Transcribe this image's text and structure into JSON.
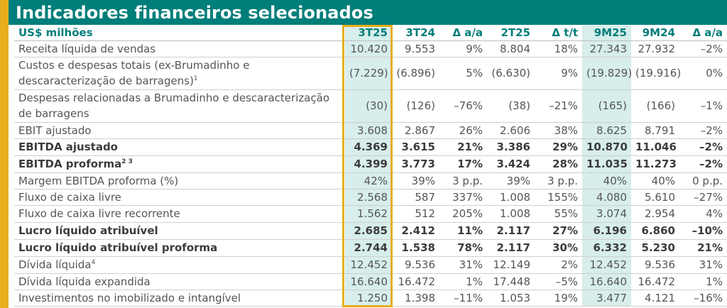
{
  "title": "Indicadores financeiros selecionados",
  "header": {
    "label": "US$ milhões",
    "cols": [
      "3T25",
      "3T24",
      "Δ a/a",
      "2T25",
      "Δ t/t",
      "9M25",
      "9M24",
      "Δ a/a"
    ]
  },
  "rows": [
    {
      "label": "Receita líquida de vendas",
      "bold": false,
      "vals": [
        "10.420",
        "9.553",
        "9%",
        "8.804",
        "18%",
        "27.343",
        "27.932",
        "–2%"
      ]
    },
    {
      "label": "Custos e despesas totais (ex-Brumadinho e descaracterização de barragens)",
      "sup": "1",
      "bold": false,
      "tall": true,
      "vals": [
        "(7.229)",
        "(6.896)",
        "5%",
        "(6.630)",
        "9%",
        "(19.829)",
        "(19.916)",
        "0%"
      ]
    },
    {
      "label": "Despesas relacionadas a Brumadinho e descaracterização de barragens",
      "bold": false,
      "tall": true,
      "vals": [
        "(30)",
        "(126)",
        "–76%",
        "(38)",
        "–21%",
        "(165)",
        "(166)",
        "–1%"
      ]
    },
    {
      "label": "EBIT ajustado",
      "bold": false,
      "vals": [
        "3.608",
        "2.867",
        "26%",
        "2.606",
        "38%",
        "8.625",
        "8.791",
        "–2%"
      ]
    },
    {
      "label": "EBITDA ajustado",
      "bold": true,
      "vals": [
        "4.369",
        "3.615",
        "21%",
        "3.386",
        "29%",
        "10.870",
        "11.046",
        "–2%"
      ]
    },
    {
      "label": "EBITDA proforma",
      "sup": "2 3",
      "bold": true,
      "vals": [
        "4.399",
        "3.773",
        "17%",
        "3.424",
        "28%",
        "11.035",
        "11.273",
        "–2%"
      ]
    },
    {
      "label": "Margem EBITDA proforma (%)",
      "bold": false,
      "vals": [
        "42%",
        "39%",
        "3 p.p.",
        "39%",
        "3 p.p.",
        "40%",
        "40%",
        "0 p.p."
      ]
    },
    {
      "label": "Fluxo de caixa livre",
      "bold": false,
      "vals": [
        "2.568",
        "587",
        "337%",
        "1.008",
        "155%",
        "4.080",
        "5.610",
        "–27%"
      ]
    },
    {
      "label": "Fluxo de caixa livre recorrente",
      "bold": false,
      "vals": [
        "1.562",
        "512",
        "205%",
        "1.008",
        "55%",
        "3.074",
        "2.954",
        "4%"
      ]
    },
    {
      "label": "Lucro líquido atribuível",
      "bold": true,
      "vals": [
        "2.685",
        "2.412",
        "11%",
        "2.117",
        "27%",
        "6.196",
        "6.860",
        "–10%"
      ]
    },
    {
      "label": "Lucro líquido atribuível proforma",
      "bold": true,
      "vals": [
        "2.744",
        "1.538",
        "78%",
        "2.117",
        "30%",
        "6.332",
        "5.230",
        "21%"
      ]
    },
    {
      "label": "Dívida líquida",
      "sup": "4",
      "bold": false,
      "vals": [
        "12.452",
        "9.536",
        "31%",
        "12.149",
        "2%",
        "12.452",
        "9.536",
        "31%"
      ]
    },
    {
      "label": "Dívida líquida expandida",
      "bold": false,
      "vals": [
        "16.640",
        "16.472",
        "1%",
        "17.448",
        "–5%",
        "16.640",
        "16.472",
        "1%"
      ]
    },
    {
      "label": "Investimentos no imobilizado e intangível",
      "bold": false,
      "vals": [
        "1.250",
        "1.398",
        "–11%",
        "1.053",
        "19%",
        "3.477",
        "4.121",
        "–16%"
      ]
    }
  ],
  "colors": {
    "teal": "#007e7a",
    "gold": "#e8ae1c",
    "highlight": "#d7eeeb"
  }
}
